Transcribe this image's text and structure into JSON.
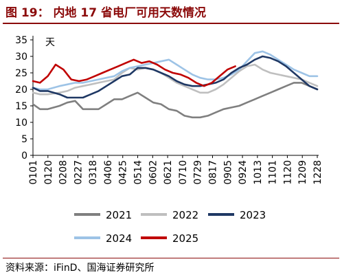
{
  "header": {
    "title": "图 19：  内地 17 省电厂可用天数情况"
  },
  "footer": {
    "source": "资料来源：iFinD、国海证券研究所"
  },
  "chart_data": {
    "type": "line",
    "unit_label": "天",
    "ylim": [
      0,
      35
    ],
    "y_ticks": [
      0,
      5,
      10,
      15,
      20,
      25,
      30,
      35
    ],
    "x_ticks": [
      "0101",
      "0120",
      "0208",
      "0227",
      "0318",
      "0406",
      "0425",
      "0514",
      "0602",
      "0621",
      "0710",
      "0729",
      "0817",
      "0905",
      "0924",
      "1013",
      "1101",
      "1120",
      "1209",
      "1228"
    ],
    "xlim_days": [
      1,
      365
    ],
    "grid": false,
    "legend_position": "bottom",
    "series": [
      {
        "name": "2021",
        "color": "#7f7f7f",
        "points": [
          [
            1,
            15.5
          ],
          [
            10,
            14
          ],
          [
            20,
            14
          ],
          [
            35,
            15
          ],
          [
            45,
            16
          ],
          [
            55,
            16.5
          ],
          [
            65,
            14
          ],
          [
            75,
            14
          ],
          [
            85,
            14
          ],
          [
            95,
            15.5
          ],
          [
            105,
            17
          ],
          [
            115,
            17
          ],
          [
            125,
            18
          ],
          [
            135,
            19
          ],
          [
            145,
            17.5
          ],
          [
            155,
            16
          ],
          [
            165,
            15.5
          ],
          [
            175,
            14
          ],
          [
            185,
            13.5
          ],
          [
            195,
            12
          ],
          [
            205,
            11.5
          ],
          [
            215,
            11.5
          ],
          [
            225,
            12
          ],
          [
            235,
            13
          ],
          [
            245,
            14
          ],
          [
            255,
            14.5
          ],
          [
            265,
            15
          ],
          [
            275,
            16
          ],
          [
            285,
            17
          ],
          [
            295,
            18
          ],
          [
            305,
            19
          ],
          [
            315,
            20
          ],
          [
            325,
            21
          ],
          [
            335,
            22
          ],
          [
            345,
            22
          ],
          [
            355,
            21
          ],
          [
            365,
            20
          ]
        ]
      },
      {
        "name": "2022",
        "color": "#bfbfbf",
        "points": [
          [
            1,
            19
          ],
          [
            10,
            18.5
          ],
          [
            20,
            18.5
          ],
          [
            35,
            19
          ],
          [
            45,
            19.5
          ],
          [
            55,
            20.5
          ],
          [
            65,
            21
          ],
          [
            75,
            21.5
          ],
          [
            85,
            22
          ],
          [
            95,
            22.5
          ],
          [
            105,
            23
          ],
          [
            115,
            25
          ],
          [
            125,
            26.5
          ],
          [
            135,
            26
          ],
          [
            145,
            26.5
          ],
          [
            155,
            26
          ],
          [
            165,
            25
          ],
          [
            175,
            23.5
          ],
          [
            185,
            22
          ],
          [
            195,
            21
          ],
          [
            205,
            20
          ],
          [
            215,
            19
          ],
          [
            225,
            19
          ],
          [
            235,
            20
          ],
          [
            245,
            21.5
          ],
          [
            255,
            23.5
          ],
          [
            265,
            25.5
          ],
          [
            275,
            27
          ],
          [
            285,
            27.5
          ],
          [
            295,
            26
          ],
          [
            305,
            25
          ],
          [
            315,
            24.5
          ],
          [
            325,
            24
          ],
          [
            335,
            23.5
          ],
          [
            345,
            23
          ],
          [
            355,
            22
          ],
          [
            365,
            21
          ]
        ]
      },
      {
        "name": "2023",
        "color": "#1f3864",
        "points": [
          [
            1,
            20.5
          ],
          [
            10,
            19.5
          ],
          [
            20,
            19.5
          ],
          [
            35,
            18.5
          ],
          [
            45,
            17.5
          ],
          [
            55,
            17.5
          ],
          [
            65,
            17.5
          ],
          [
            75,
            18.5
          ],
          [
            85,
            19.5
          ],
          [
            95,
            21
          ],
          [
            105,
            22.5
          ],
          [
            115,
            24
          ],
          [
            125,
            24.5
          ],
          [
            135,
            26.5
          ],
          [
            145,
            26.5
          ],
          [
            155,
            26
          ],
          [
            165,
            25
          ],
          [
            175,
            24
          ],
          [
            185,
            22.5
          ],
          [
            195,
            21.5
          ],
          [
            205,
            21
          ],
          [
            215,
            21
          ],
          [
            225,
            21.5
          ],
          [
            235,
            22
          ],
          [
            245,
            23
          ],
          [
            255,
            25
          ],
          [
            265,
            26.5
          ],
          [
            275,
            27.5
          ],
          [
            285,
            29
          ],
          [
            295,
            30
          ],
          [
            305,
            29.5
          ],
          [
            315,
            28.5
          ],
          [
            325,
            27
          ],
          [
            335,
            25
          ],
          [
            345,
            23
          ],
          [
            355,
            21
          ],
          [
            365,
            20
          ]
        ]
      },
      {
        "name": "2024",
        "color": "#9dc3e6",
        "points": [
          [
            1,
            20.5
          ],
          [
            10,
            20
          ],
          [
            20,
            20
          ],
          [
            35,
            21
          ],
          [
            45,
            21.5
          ],
          [
            55,
            22
          ],
          [
            65,
            22
          ],
          [
            75,
            22.5
          ],
          [
            85,
            23
          ],
          [
            95,
            23.5
          ],
          [
            105,
            24
          ],
          [
            115,
            25.5
          ],
          [
            125,
            26.5
          ],
          [
            135,
            27
          ],
          [
            145,
            27.5
          ],
          [
            155,
            28
          ],
          [
            165,
            28.5
          ],
          [
            175,
            29
          ],
          [
            185,
            27.5
          ],
          [
            195,
            26
          ],
          [
            205,
            24.5
          ],
          [
            215,
            23.5
          ],
          [
            225,
            23
          ],
          [
            235,
            23
          ],
          [
            245,
            23.5
          ],
          [
            255,
            24.5
          ],
          [
            265,
            26
          ],
          [
            275,
            28.5
          ],
          [
            285,
            31
          ],
          [
            295,
            31.5
          ],
          [
            305,
            30.5
          ],
          [
            315,
            29
          ],
          [
            325,
            27.5
          ],
          [
            335,
            26
          ],
          [
            345,
            25
          ],
          [
            355,
            24
          ],
          [
            365,
            24
          ]
        ]
      },
      {
        "name": "2025",
        "color": "#c00000",
        "points": [
          [
            1,
            22.5
          ],
          [
            10,
            22
          ],
          [
            20,
            24
          ],
          [
            30,
            27.5
          ],
          [
            40,
            26
          ],
          [
            50,
            23
          ],
          [
            60,
            22.5
          ],
          [
            70,
            23
          ],
          [
            80,
            24
          ],
          [
            90,
            25
          ],
          [
            100,
            26
          ],
          [
            110,
            27
          ],
          [
            120,
            28
          ],
          [
            130,
            29
          ],
          [
            140,
            28
          ],
          [
            150,
            28.5
          ],
          [
            160,
            27.5
          ],
          [
            170,
            26
          ],
          [
            180,
            25
          ],
          [
            190,
            24.5
          ],
          [
            200,
            23.5
          ],
          [
            210,
            22
          ],
          [
            220,
            21
          ],
          [
            230,
            22
          ],
          [
            240,
            24
          ],
          [
            250,
            26
          ],
          [
            260,
            27
          ]
        ]
      }
    ]
  }
}
